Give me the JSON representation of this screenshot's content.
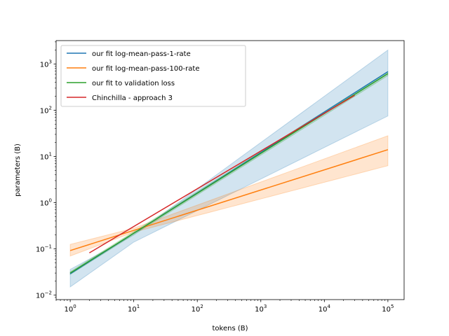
{
  "chart_data": {
    "type": "line",
    "xlabel": "tokens (B)",
    "ylabel": "parameters (B)",
    "xscale": "log",
    "yscale": "log",
    "xlim": [
      0.6,
      180000
    ],
    "ylim": [
      0.008,
      3200
    ],
    "grid": false,
    "legend_position": "top-left",
    "x_ticks": [
      {
        "value": 1,
        "mantissa": "10",
        "exp": "0"
      },
      {
        "value": 10,
        "mantissa": "10",
        "exp": "1"
      },
      {
        "value": 100,
        "mantissa": "10",
        "exp": "2"
      },
      {
        "value": 1000,
        "mantissa": "10",
        "exp": "3"
      },
      {
        "value": 10000,
        "mantissa": "10",
        "exp": "4"
      },
      {
        "value": 100000,
        "mantissa": "10",
        "exp": "5"
      }
    ],
    "y_ticks": [
      {
        "value": 0.01,
        "mantissa": "10",
        "exp": "−2"
      },
      {
        "value": 0.1,
        "mantissa": "10",
        "exp": "−1"
      },
      {
        "value": 1,
        "mantissa": "10",
        "exp": "0"
      },
      {
        "value": 10,
        "mantissa": "10",
        "exp": "1"
      },
      {
        "value": 100,
        "mantissa": "10",
        "exp": "2"
      },
      {
        "value": 1000,
        "mantissa": "10",
        "exp": "3"
      }
    ],
    "series": [
      {
        "name": "our fit log-mean-pass-1-rate",
        "color": "#1f77b4",
        "x": [
          1,
          100000
        ],
        "y": [
          0.029,
          680
        ],
        "band": {
          "x": [
            1,
            10,
            100000
          ],
          "lower": [
            0.015,
            0.14,
            75
          ],
          "upper": [
            0.036,
            0.2,
            2000
          ]
        }
      },
      {
        "name": "our fit log-mean-pass-100-rate",
        "color": "#ff7f0e",
        "x": [
          1,
          100000
        ],
        "y": [
          0.092,
          14
        ],
        "band": {
          "x": [
            1,
            10,
            100000
          ],
          "lower": [
            0.07,
            0.23,
            6.3
          ],
          "upper": [
            0.125,
            0.28,
            28
          ]
        }
      },
      {
        "name": "our fit to validation loss",
        "color": "#2ca02c",
        "x": [
          1,
          100000
        ],
        "y": [
          0.03,
          620
        ],
        "band": {
          "x": [
            1,
            100000
          ],
          "lower": [
            0.028,
            560
          ],
          "upper": [
            0.032,
            690
          ]
        }
      },
      {
        "name": "Chinchilla - approach 3",
        "color": "#d62728",
        "x": [
          2,
          30000
        ],
        "y": [
          0.082,
          210
        ]
      }
    ]
  }
}
